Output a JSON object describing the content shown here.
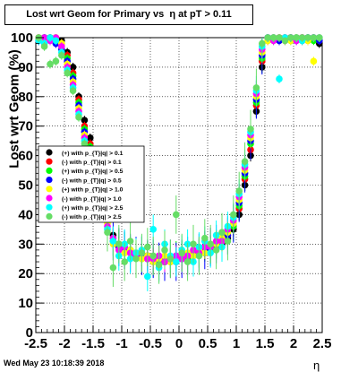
{
  "title": "Lost wrt Geom for Primary vs",
  "title_suffix": "η at pT > 0.11",
  "timestamp": "Wed May 23 10:18:39 2018",
  "colors": {
    "black": "#000000",
    "red": "#ff0000",
    "green": "#00ff00",
    "blue": "#0000ff",
    "yellow": "#ffff00",
    "magenta": "#ff00ff",
    "cyan": "#00ffff",
    "lightgreen": "#66dd66"
  },
  "chart_data": {
    "type": "scatter",
    "title": "Lost wrt Geom for Primary vs η at pT > 0.11",
    "xlabel": "η",
    "ylabel": "Lost wrt Geom (%)",
    "xlim": [
      -2.5,
      2.5
    ],
    "ylim": [
      0,
      100
    ],
    "xticks": [
      "-2.5",
      "-2",
      "-1.5",
      "-1",
      "-0.5",
      "0",
      "0.5",
      "1",
      "1.5",
      "2",
      "2.5"
    ],
    "yticks": [
      "0",
      "10",
      "20",
      "30",
      "40",
      "50",
      "60",
      "70",
      "80",
      "90",
      "100"
    ],
    "grid": true,
    "legend_position": "left-middle",
    "x": [
      -2.45,
      -2.35,
      -2.25,
      -2.15,
      -2.05,
      -1.95,
      -1.85,
      -1.75,
      -1.65,
      -1.55,
      -1.45,
      -1.35,
      -1.25,
      -1.15,
      -1.05,
      -0.95,
      -0.85,
      -0.75,
      -0.65,
      -0.55,
      -0.45,
      -0.35,
      -0.25,
      -0.15,
      -0.05,
      0.05,
      0.15,
      0.25,
      0.35,
      0.45,
      0.55,
      0.65,
      0.75,
      0.85,
      0.95,
      1.05,
      1.15,
      1.25,
      1.35,
      1.45,
      1.55,
      1.65,
      1.75,
      1.85,
      1.95,
      2.05,
      2.15,
      2.25,
      2.35,
      2.45
    ],
    "series": [
      {
        "name": "(+) with p_{T}|q| > 0.1",
        "color": "#000000",
        "values": [
          99,
          100,
          100,
          99,
          99,
          95,
          90,
          80,
          72,
          66,
          60,
          55,
          42,
          33,
          30,
          28,
          28,
          27,
          26,
          26,
          25,
          25,
          24,
          24,
          25,
          25,
          26,
          26,
          27,
          27,
          28,
          29,
          30,
          32,
          35,
          40,
          50,
          60,
          75,
          90,
          100,
          100,
          99,
          100,
          100,
          100,
          99,
          100,
          100,
          98
        ]
      },
      {
        "name": "(-) with p_{T}|q| > 0.1",
        "color": "#ff0000",
        "values": [
          100,
          99,
          100,
          100,
          98,
          94,
          88,
          79,
          70,
          64,
          58,
          52,
          40,
          32,
          29,
          28,
          27,
          27,
          26,
          25,
          25,
          24,
          24,
          25,
          25,
          26,
          26,
          27,
          28,
          28,
          29,
          30,
          31,
          33,
          36,
          42,
          52,
          62,
          77,
          92,
          99,
          100,
          100,
          99,
          100,
          100,
          100,
          99,
          100,
          99
        ]
      },
      {
        "name": "(+) with p_{T}|q| > 0.5",
        "color": "#00ff00",
        "values": [
          100,
          100,
          99,
          100,
          97,
          93,
          87,
          78,
          69,
          63,
          57,
          51,
          39,
          31,
          30,
          29,
          28,
          26,
          25,
          26,
          24,
          25,
          25,
          24,
          26,
          26,
          25,
          27,
          27,
          29,
          28,
          30,
          32,
          34,
          36,
          43,
          53,
          64,
          78,
          93,
          100,
          99,
          100,
          100,
          99,
          100,
          100,
          100,
          99,
          100
        ]
      },
      {
        "name": "(-) with p_{T}|q| > 0.5",
        "color": "#0000ff",
        "values": [
          99,
          100,
          100,
          98,
          96,
          92,
          86,
          77,
          68,
          62,
          56,
          50,
          38,
          31,
          29,
          28,
          27,
          26,
          26,
          25,
          25,
          24,
          24,
          25,
          24,
          25,
          26,
          26,
          27,
          28,
          29,
          30,
          31,
          33,
          37,
          44,
          54,
          65,
          79,
          94,
          100,
          100,
          99,
          100,
          100,
          99,
          100,
          100,
          100,
          99
        ]
      },
      {
        "name": "(+) with p_{T}|q| > 1.0",
        "color": "#ffff00",
        "values": [
          100,
          99,
          100,
          100,
          98,
          91,
          85,
          76,
          67,
          61,
          55,
          49,
          37,
          30,
          30,
          27,
          28,
          27,
          25,
          26,
          24,
          25,
          26,
          24,
          25,
          26,
          27,
          26,
          28,
          27,
          30,
          30,
          32,
          34,
          37,
          45,
          55,
          66,
          80,
          95,
          99,
          100,
          100,
          100,
          99,
          100,
          100,
          99,
          92,
          100
        ]
      },
      {
        "name": "(-) with p_{T}|q| > 1.0",
        "color": "#ff00ff",
        "values": [
          100,
          100,
          99,
          100,
          97,
          90,
          84,
          75,
          66,
          60,
          54,
          48,
          36,
          32,
          28,
          29,
          27,
          26,
          27,
          25,
          25,
          26,
          24,
          25,
          26,
          25,
          26,
          28,
          27,
          29,
          29,
          31,
          31,
          35,
          38,
          46,
          56,
          67,
          81,
          96,
          100,
          99,
          100,
          100,
          100,
          99,
          100,
          100,
          100,
          100
        ]
      },
      {
        "name": "(+) with p_{T}|q| > 2.5",
        "color": "#00ffff",
        "values": [
          99,
          98,
          100,
          99,
          95,
          89,
          83,
          74,
          65,
          59,
          53,
          47,
          35,
          31,
          26,
          30,
          25,
          27,
          28,
          19,
          35,
          22,
          30,
          26,
          24,
          28,
          30,
          24,
          29,
          31,
          27,
          33,
          29,
          36,
          39,
          47,
          57,
          68,
          82,
          97,
          100,
          100,
          86,
          100,
          100,
          100,
          99,
          100,
          100,
          100
        ]
      },
      {
        "name": "(-) with p_{T}|q| > 2.5",
        "color": "#66dd66",
        "values": [
          100,
          97,
          91,
          92,
          94,
          88,
          82,
          73,
          64,
          58,
          52,
          46,
          34,
          22,
          30,
          24,
          31,
          25,
          27,
          29,
          26,
          23,
          28,
          25,
          40,
          27,
          24,
          30,
          26,
          32,
          30,
          28,
          34,
          31,
          40,
          48,
          58,
          69,
          83,
          98,
          100,
          100,
          100,
          99,
          100,
          100,
          100,
          100,
          100,
          100
        ]
      }
    ]
  },
  "legend_entries": [
    {
      "label": "(+) with p_{T}|q| > 0.1",
      "color": "#000000"
    },
    {
      "label": "(-) with p_{T}|q| > 0.1",
      "color": "#ff0000"
    },
    {
      "label": "(+) with p_{T}|q| > 0.5",
      "color": "#00ff00"
    },
    {
      "label": "(-) with p_{T}|q| > 0.5",
      "color": "#0000ff"
    },
    {
      "label": "(+) with p_{T}|q| > 1.0",
      "color": "#ffff00"
    },
    {
      "label": "(-) with p_{T}|q| > 1.0",
      "color": "#ff00ff"
    },
    {
      "label": "(+) with p_{T}|q| > 2.5",
      "color": "#00ffff"
    },
    {
      "label": "(-) with p_{T}|q| > 2.5",
      "color": "#66dd66"
    }
  ]
}
